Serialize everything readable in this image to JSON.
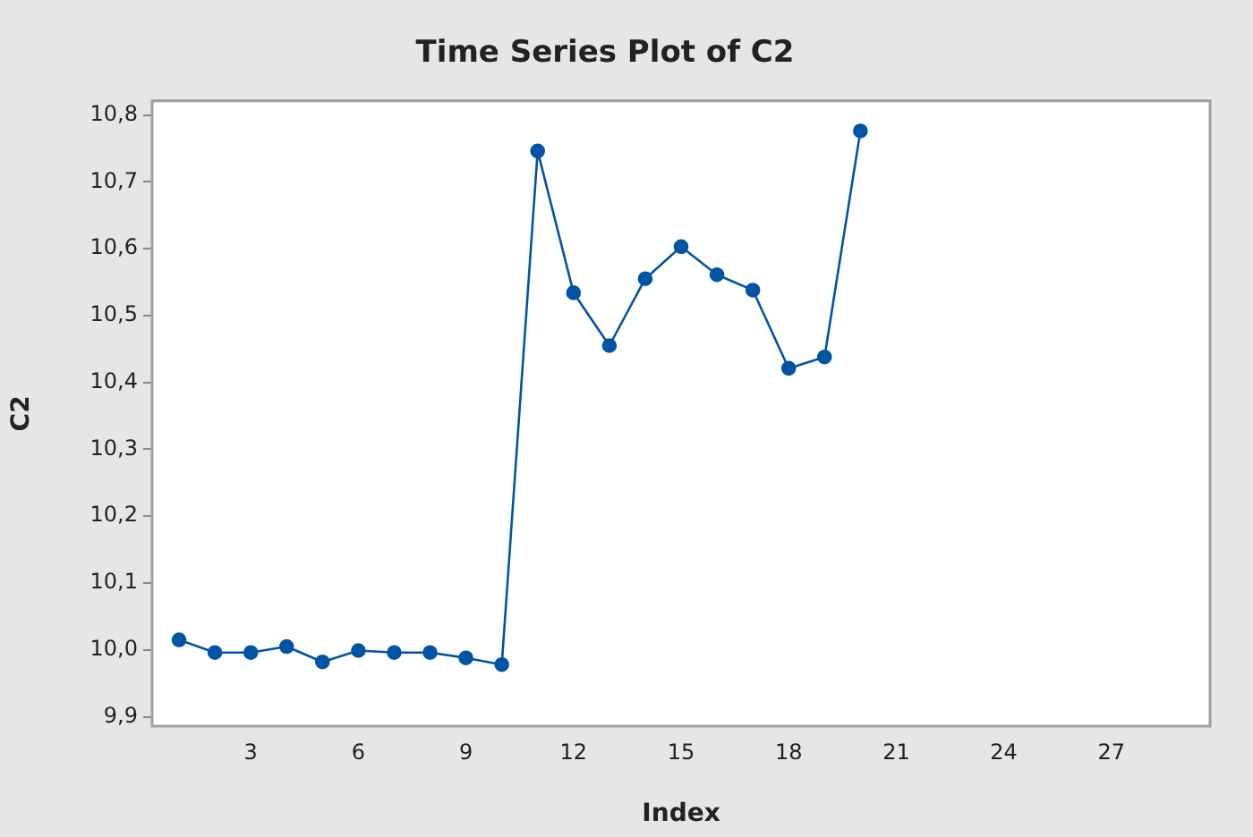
{
  "chart_data": {
    "type": "line",
    "title": "Time Series Plot of C2",
    "xlabel": "Index",
    "ylabel": "C2",
    "x": [
      1,
      2,
      3,
      4,
      5,
      6,
      7,
      8,
      9,
      10,
      11,
      12,
      13,
      14,
      15,
      16,
      17,
      18,
      19,
      20
    ],
    "series": [
      {
        "color": "#0054a6",
        "values": [
          10.015,
          9.996,
          9.996,
          10.005,
          9.982,
          9.999,
          9.996,
          9.996,
          9.988,
          9.978,
          10.746,
          10.534,
          10.455,
          10.555,
          10.603,
          10.561,
          10.538,
          10.421,
          10.438,
          10.776
        ]
      }
    ],
    "xlim": [
      0.25,
      29.75
    ],
    "xticks": [
      3,
      6,
      9,
      12,
      15,
      18,
      21,
      24,
      27
    ],
    "ylim": [
      9.886,
      10.821
    ],
    "yticks": [
      {
        "value": 9.9,
        "label": "9,9"
      },
      {
        "value": 10.0,
        "label": "10,0"
      },
      {
        "value": 10.1,
        "label": "10,1"
      },
      {
        "value": 10.2,
        "label": "10,2"
      },
      {
        "value": 10.3,
        "label": "10,3"
      },
      {
        "value": 10.4,
        "label": "10,4"
      },
      {
        "value": 10.5,
        "label": "10,5"
      },
      {
        "value": 10.6,
        "label": "10,6"
      },
      {
        "value": 10.7,
        "label": "10,7"
      },
      {
        "value": 10.8,
        "label": "10,8"
      }
    ],
    "grid": false,
    "legend": false,
    "marker": "circle",
    "line_style": "solid"
  }
}
